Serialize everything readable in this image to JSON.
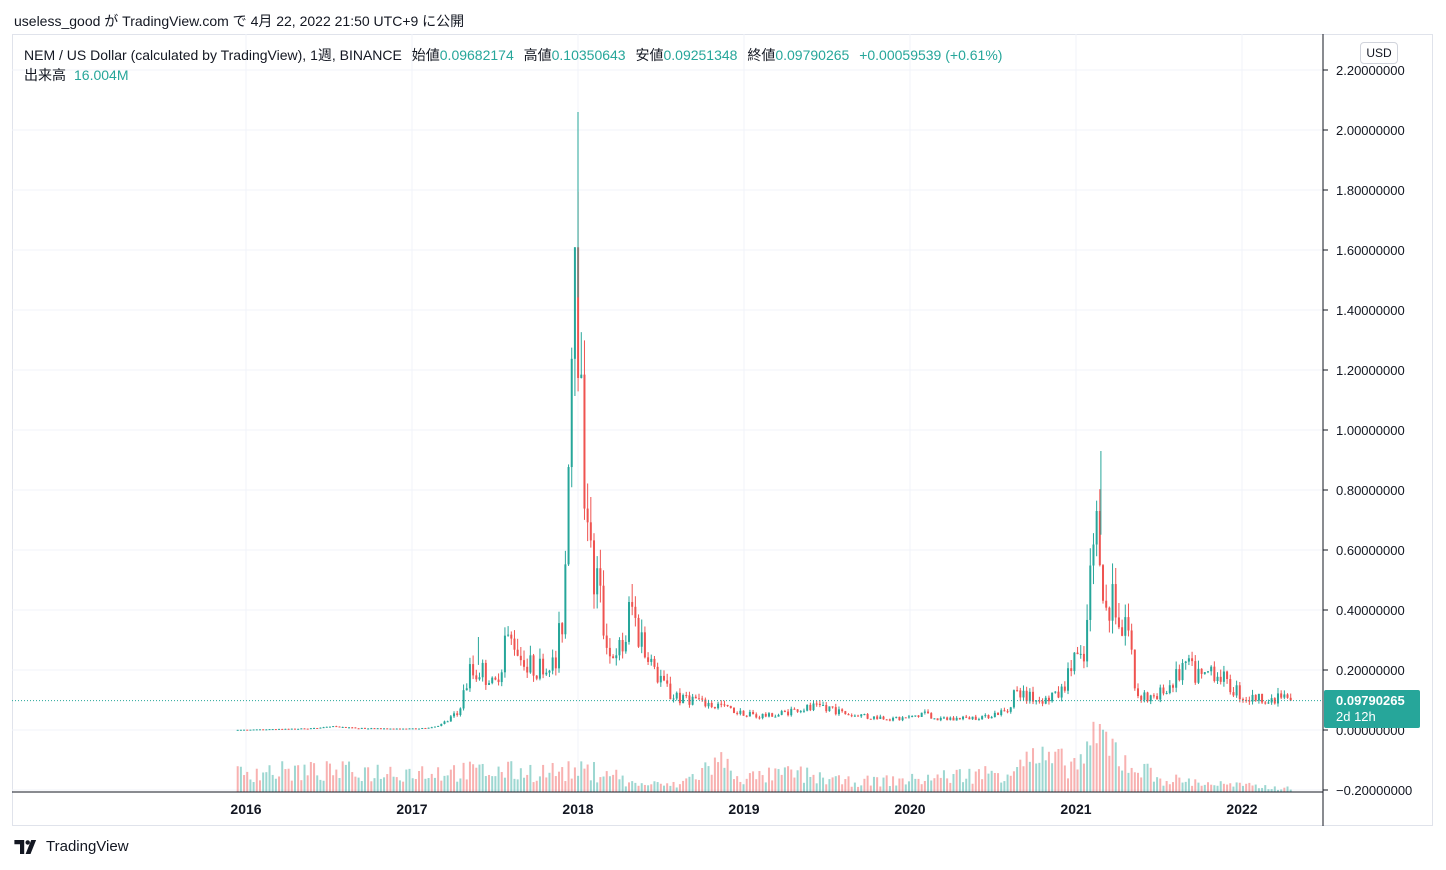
{
  "caption": "useless_good が TradingView.com で 4月 22, 2022 21:50 UTC+9 に公開",
  "legend": {
    "symbol": "NEM / US Dollar (calculated by TradingView), 1週, BINANCE",
    "open_label": "始値",
    "open": "0.09682174",
    "high_label": "高値",
    "high": "0.10350643",
    "low_label": "安値",
    "low": "0.09251348",
    "close_label": "終値",
    "close": "0.09790265",
    "change": "+0.00059539 (+0.61%)"
  },
  "volume": {
    "label": "出来高",
    "value": "16.004M"
  },
  "currency": "USD",
  "last_price": {
    "value": "0.09790265",
    "countdown": "2d 12h"
  },
  "brand": "TradingView",
  "colors": {
    "up": "#26a69a",
    "down": "#ef5350",
    "grid": "#f0f3fa",
    "axis_text": "#131722"
  },
  "chart_data": {
    "type": "candlestick",
    "interval": "1週",
    "exchange": "BINANCE",
    "y_axis": {
      "range": [
        -0.2,
        2.2
      ],
      "ticks": [
        "2.20000000",
        "2.00000000",
        "1.80000000",
        "1.60000000",
        "1.40000000",
        "1.20000000",
        "1.00000000",
        "0.80000000",
        "0.60000000",
        "0.40000000",
        "0.20000000",
        "0.00000000",
        "−0.20000000"
      ],
      "tick_values": [
        2.2,
        2.0,
        1.8,
        1.6,
        1.4,
        1.2,
        1.0,
        0.8,
        0.6,
        0.4,
        0.2,
        0.0,
        -0.2
      ]
    },
    "x_axis": {
      "ticks": [
        "2016",
        "2017",
        "2018",
        "2019",
        "2020",
        "2021",
        "2022"
      ],
      "tick_years": [
        2016,
        2017,
        2018,
        2019,
        2020,
        2021,
        2022
      ],
      "range": [
        2015.8,
        2022.5
      ]
    },
    "grid": true,
    "last_close": 0.09790265,
    "price_path": [
      {
        "t": 2015.95,
        "p": 0.0003
      },
      {
        "t": 2016.3,
        "p": 0.004
      },
      {
        "t": 2016.45,
        "p": 0.006
      },
      {
        "t": 2016.5,
        "p": 0.013
      },
      {
        "t": 2016.7,
        "p": 0.006
      },
      {
        "t": 2016.95,
        "p": 0.004
      },
      {
        "t": 2017.1,
        "p": 0.006
      },
      {
        "t": 2017.2,
        "p": 0.018
      },
      {
        "t": 2017.3,
        "p": 0.06
      },
      {
        "t": 2017.38,
        "p": 0.21
      },
      {
        "t": 2017.45,
        "p": 0.19
      },
      {
        "t": 2017.52,
        "p": 0.14
      },
      {
        "t": 2017.58,
        "p": 0.27
      },
      {
        "t": 2017.65,
        "p": 0.3
      },
      {
        "t": 2017.72,
        "p": 0.22
      },
      {
        "t": 2017.8,
        "p": 0.2
      },
      {
        "t": 2017.88,
        "p": 0.22
      },
      {
        "t": 2017.93,
        "p": 0.4
      },
      {
        "t": 2017.96,
        "p": 0.95
      },
      {
        "t": 2018.0,
        "p": 1.75
      },
      {
        "t": 2018.04,
        "p": 1.05
      },
      {
        "t": 2018.1,
        "p": 0.55
      },
      {
        "t": 2018.18,
        "p": 0.35
      },
      {
        "t": 2018.25,
        "p": 0.22
      },
      {
        "t": 2018.33,
        "p": 0.38
      },
      {
        "t": 2018.4,
        "p": 0.3
      },
      {
        "t": 2018.5,
        "p": 0.17
      },
      {
        "t": 2018.6,
        "p": 0.11
      },
      {
        "t": 2018.75,
        "p": 0.09
      },
      {
        "t": 2018.9,
        "p": 0.075
      },
      {
        "t": 2019.1,
        "p": 0.045
      },
      {
        "t": 2019.3,
        "p": 0.06
      },
      {
        "t": 2019.45,
        "p": 0.08
      },
      {
        "t": 2019.6,
        "p": 0.06
      },
      {
        "t": 2019.8,
        "p": 0.04
      },
      {
        "t": 2020.0,
        "p": 0.036
      },
      {
        "t": 2020.1,
        "p": 0.055
      },
      {
        "t": 2020.2,
        "p": 0.035
      },
      {
        "t": 2020.45,
        "p": 0.042
      },
      {
        "t": 2020.6,
        "p": 0.06
      },
      {
        "t": 2020.65,
        "p": 0.12
      },
      {
        "t": 2020.85,
        "p": 0.1
      },
      {
        "t": 2020.95,
        "p": 0.14
      },
      {
        "t": 2021.0,
        "p": 0.25
      },
      {
        "t": 2021.07,
        "p": 0.2
      },
      {
        "t": 2021.1,
        "p": 0.45
      },
      {
        "t": 2021.15,
        "p": 0.71
      },
      {
        "t": 2021.2,
        "p": 0.36
      },
      {
        "t": 2021.26,
        "p": 0.45
      },
      {
        "t": 2021.33,
        "p": 0.32
      },
      {
        "t": 2021.38,
        "p": 0.13
      },
      {
        "t": 2021.48,
        "p": 0.1
      },
      {
        "t": 2021.6,
        "p": 0.17
      },
      {
        "t": 2021.7,
        "p": 0.21
      },
      {
        "t": 2021.78,
        "p": 0.16
      },
      {
        "t": 2021.88,
        "p": 0.2
      },
      {
        "t": 2021.95,
        "p": 0.14
      },
      {
        "t": 2022.05,
        "p": 0.11
      },
      {
        "t": 2022.2,
        "p": 0.1
      },
      {
        "t": 2022.25,
        "p": 0.12
      },
      {
        "t": 2022.3,
        "p": 0.098
      }
    ],
    "volume_path": [
      {
        "t": 2018.2,
        "v": 0.6
      },
      {
        "t": 2018.3,
        "v": 0.25
      },
      {
        "t": 2018.6,
        "v": 0.2
      },
      {
        "t": 2018.85,
        "v": 0.9
      },
      {
        "t": 2019.0,
        "v": 0.4
      },
      {
        "t": 2019.3,
        "v": 0.55
      },
      {
        "t": 2019.6,
        "v": 0.3
      },
      {
        "t": 2020.0,
        "v": 0.35
      },
      {
        "t": 2020.2,
        "v": 0.45
      },
      {
        "t": 2020.6,
        "v": 0.6
      },
      {
        "t": 2020.65,
        "v": 1.0
      },
      {
        "t": 2021.0,
        "v": 0.8
      },
      {
        "t": 2021.15,
        "v": 1.6
      },
      {
        "t": 2021.3,
        "v": 0.9
      },
      {
        "t": 2021.5,
        "v": 0.4
      },
      {
        "t": 2021.8,
        "v": 0.25
      },
      {
        "t": 2022.3,
        "v": 0.1
      }
    ]
  }
}
